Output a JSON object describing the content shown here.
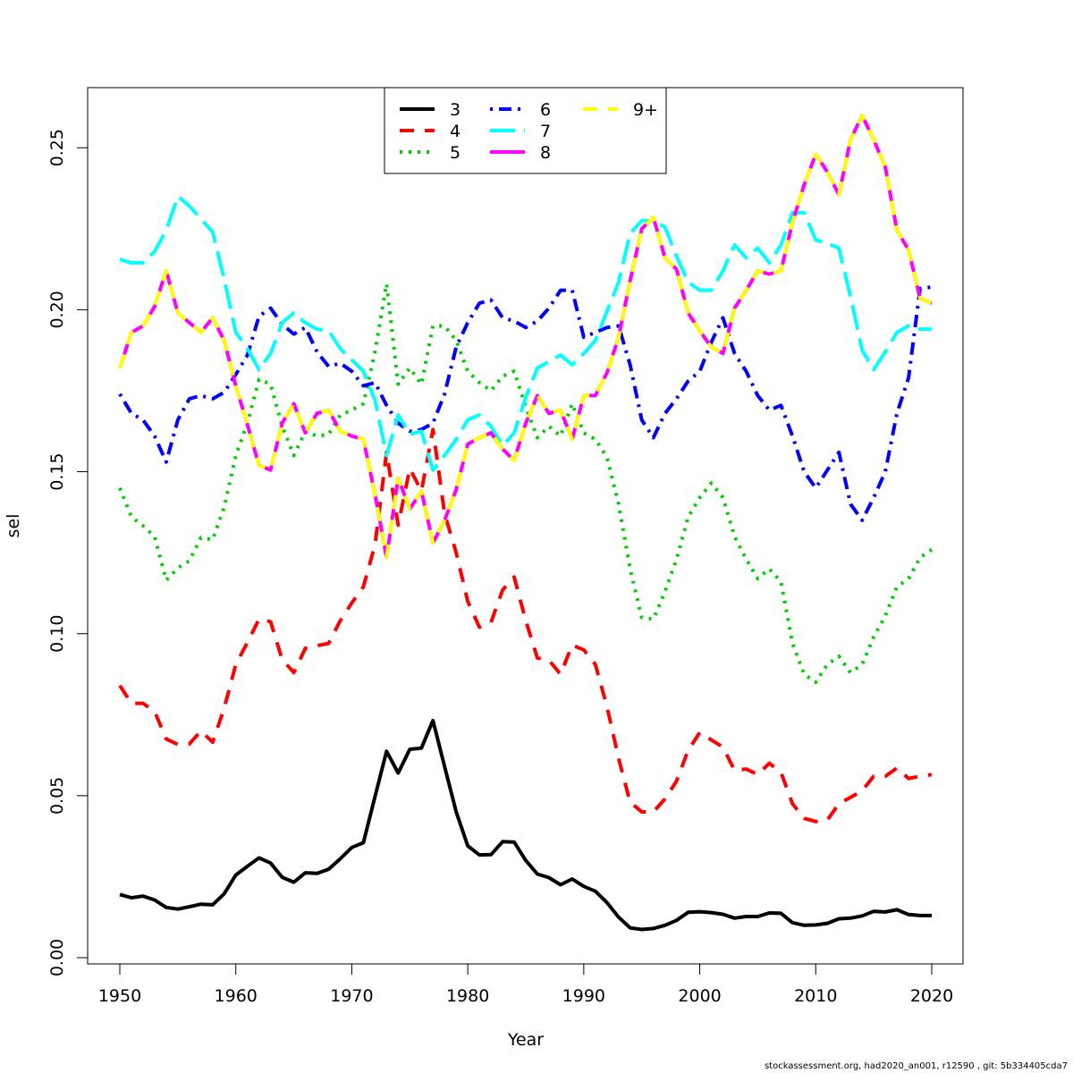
{
  "chart_data": {
    "type": "line",
    "xlabel": "Year",
    "ylabel": "sel",
    "xlim": [
      1950,
      2020
    ],
    "ylim": [
      0,
      0.26
    ],
    "x_ticks": [
      1950,
      1960,
      1970,
      1980,
      1990,
      2000,
      2010,
      2020
    ],
    "y_ticks": [
      0.0,
      0.05,
      0.1,
      0.15,
      0.2,
      0.25
    ],
    "y_tick_labels": [
      "0.00",
      "0.05",
      "0.10",
      "0.15",
      "0.20",
      "0.25"
    ],
    "legend_position": "top-center",
    "x": [
      1950,
      1951,
      1952,
      1953,
      1954,
      1955,
      1956,
      1957,
      1958,
      1959,
      1960,
      1961,
      1962,
      1963,
      1964,
      1965,
      1966,
      1967,
      1968,
      1969,
      1970,
      1971,
      1972,
      1973,
      1974,
      1975,
      1976,
      1977,
      1978,
      1979,
      1980,
      1981,
      1982,
      1983,
      1984,
      1985,
      1986,
      1987,
      1988,
      1989,
      1990,
      1991,
      1992,
      1993,
      1994,
      1995,
      1996,
      1997,
      1998,
      1999,
      2000,
      2001,
      2002,
      2003,
      2004,
      2005,
      2006,
      2007,
      2008,
      2009,
      2010,
      2011,
      2012,
      2013,
      2014,
      2015,
      2016,
      2017,
      2018,
      2019,
      2020
    ],
    "series": [
      {
        "name": "3",
        "color": "#000000",
        "dash": "solid",
        "values": [
          0.0195,
          0.0185,
          0.019,
          0.0178,
          0.0155,
          0.015,
          0.0157,
          0.0165,
          0.0163,
          0.0197,
          0.0255,
          0.0282,
          0.0308,
          0.0292,
          0.0248,
          0.0233,
          0.0262,
          0.026,
          0.0273,
          0.0305,
          0.034,
          0.0355,
          0.0497,
          0.0637,
          0.057,
          0.0643,
          0.0647,
          0.0732,
          0.059,
          0.045,
          0.0345,
          0.0317,
          0.0318,
          0.0358,
          0.0357,
          0.03,
          0.0258,
          0.0247,
          0.0225,
          0.0243,
          0.022,
          0.0205,
          0.017,
          0.0125,
          0.0092,
          0.0087,
          0.009,
          0.01,
          0.0115,
          0.014,
          0.0142,
          0.0139,
          0.0134,
          0.0122,
          0.0127,
          0.0127,
          0.0138,
          0.0137,
          0.0108,
          0.01,
          0.0101,
          0.0106,
          0.012,
          0.0122,
          0.0129,
          0.0143,
          0.0141,
          0.0148,
          0.0133,
          0.013,
          0.013
        ]
      },
      {
        "name": "4",
        "color": "#ff0000",
        "dash": "dashed",
        "values": [
          0.084,
          0.0785,
          0.0785,
          0.076,
          0.0675,
          0.0658,
          0.066,
          0.07,
          0.0665,
          0.077,
          0.0905,
          0.0973,
          0.1045,
          0.1037,
          0.092,
          0.088,
          0.0955,
          0.0963,
          0.097,
          0.104,
          0.1095,
          0.1145,
          0.1275,
          0.156,
          0.1335,
          0.151,
          0.144,
          0.163,
          0.137,
          0.125,
          0.11,
          0.102,
          0.1035,
          0.1135,
          0.1175,
          0.104,
          0.0925,
          0.0918,
          0.0875,
          0.0965,
          0.095,
          0.0905,
          0.0775,
          0.0615,
          0.048,
          0.045,
          0.045,
          0.049,
          0.0545,
          0.064,
          0.0695,
          0.0672,
          0.065,
          0.0578,
          0.0582,
          0.0565,
          0.06,
          0.0572,
          0.0475,
          0.043,
          0.042,
          0.0425,
          0.0475,
          0.0495,
          0.0515,
          0.056,
          0.056,
          0.0585,
          0.0553,
          0.056,
          0.0565
        ]
      },
      {
        "name": "5",
        "color": "#00cd00",
        "dash": "dotted",
        "values": [
          0.145,
          0.136,
          0.1333,
          0.13,
          0.1165,
          0.1203,
          0.1225,
          0.1297,
          0.129,
          0.139,
          0.155,
          0.165,
          0.1785,
          0.177,
          0.164,
          0.155,
          0.1625,
          0.161,
          0.1615,
          0.1675,
          0.169,
          0.171,
          0.187,
          0.208,
          0.177,
          0.182,
          0.177,
          0.195,
          0.195,
          0.1905,
          0.181,
          0.1775,
          0.175,
          0.1795,
          0.181,
          0.17,
          0.1605,
          0.164,
          0.161,
          0.171,
          0.162,
          0.16,
          0.1545,
          0.14,
          0.12,
          0.105,
          0.1045,
          0.113,
          0.123,
          0.136,
          0.142,
          0.1465,
          0.142,
          0.13,
          0.123,
          0.117,
          0.12,
          0.116,
          0.097,
          0.0875,
          0.085,
          0.0905,
          0.093,
          0.088,
          0.0905,
          0.099,
          0.1055,
          0.1145,
          0.117,
          0.1235,
          0.126
        ]
      },
      {
        "name": "6",
        "color": "#0000ff",
        "dash": "dotdash",
        "values": [
          0.174,
          0.168,
          0.166,
          0.161,
          0.153,
          0.166,
          0.1725,
          0.1735,
          0.1725,
          0.1745,
          0.18,
          0.186,
          0.198,
          0.2005,
          0.1955,
          0.1925,
          0.1945,
          0.187,
          0.1825,
          0.1835,
          0.181,
          0.1765,
          0.1775,
          0.1705,
          0.165,
          0.1625,
          0.163,
          0.165,
          0.174,
          0.1885,
          0.196,
          0.202,
          0.203,
          0.1975,
          0.1965,
          0.1945,
          0.1965,
          0.2005,
          0.206,
          0.206,
          0.1915,
          0.193,
          0.1945,
          0.195,
          0.183,
          0.166,
          0.1605,
          0.168,
          0.1725,
          0.178,
          0.181,
          0.19,
          0.1975,
          0.1865,
          0.181,
          0.1735,
          0.169,
          0.1705,
          0.161,
          0.15,
          0.145,
          0.1505,
          0.156,
          0.14,
          0.135,
          0.142,
          0.15,
          0.168,
          0.179,
          0.2065,
          0.207
        ]
      },
      {
        "name": "7",
        "color": "#00ffff",
        "dash": "longdash",
        "values": [
          0.2155,
          0.2145,
          0.2145,
          0.218,
          0.2245,
          0.235,
          0.232,
          0.228,
          0.224,
          0.2095,
          0.193,
          0.188,
          0.1815,
          0.1865,
          0.196,
          0.199,
          0.196,
          0.194,
          0.1935,
          0.188,
          0.1845,
          0.181,
          0.172,
          0.155,
          0.1675,
          0.1615,
          0.1625,
          0.1505,
          0.155,
          0.16,
          0.166,
          0.1675,
          0.164,
          0.158,
          0.162,
          0.173,
          0.182,
          0.184,
          0.186,
          0.183,
          0.1865,
          0.1905,
          0.1995,
          0.2085,
          0.2235,
          0.2275,
          0.2275,
          0.2255,
          0.2165,
          0.2085,
          0.206,
          0.206,
          0.212,
          0.22,
          0.216,
          0.219,
          0.2145,
          0.22,
          0.23,
          0.23,
          0.2215,
          0.2205,
          0.219,
          0.204,
          0.1875,
          0.1815,
          0.187,
          0.193,
          0.195,
          0.194,
          0.194
        ]
      },
      {
        "name": "8",
        "color": "#ff00ff",
        "dash": "solid",
        "values": [
          0.182,
          0.193,
          0.195,
          0.201,
          0.212,
          0.199,
          0.196,
          0.193,
          0.1975,
          0.1905,
          0.1765,
          0.1645,
          0.152,
          0.1505,
          0.165,
          0.171,
          0.162,
          0.168,
          0.169,
          0.1625,
          0.161,
          0.16,
          0.143,
          0.1235,
          0.148,
          0.1385,
          0.144,
          0.128,
          0.135,
          0.1445,
          0.1585,
          0.1605,
          0.162,
          0.157,
          0.1535,
          0.165,
          0.1735,
          0.168,
          0.169,
          0.16,
          0.1735,
          0.1735,
          0.1805,
          0.1915,
          0.209,
          0.225,
          0.2285,
          0.216,
          0.2125,
          0.199,
          0.1935,
          0.1885,
          0.1865,
          0.2005,
          0.206,
          0.212,
          0.211,
          0.212,
          0.227,
          0.2385,
          0.248,
          0.2425,
          0.2355,
          0.2525,
          0.26,
          0.2525,
          0.244,
          0.2245,
          0.2185,
          0.2035,
          0.202
        ]
      },
      {
        "name": "9+",
        "color": "#ffff00",
        "dash": "dashed",
        "values": [
          0.182,
          0.193,
          0.195,
          0.201,
          0.212,
          0.199,
          0.196,
          0.193,
          0.1975,
          0.1905,
          0.1765,
          0.1645,
          0.152,
          0.1505,
          0.165,
          0.171,
          0.162,
          0.168,
          0.169,
          0.1625,
          0.161,
          0.16,
          0.143,
          0.1235,
          0.148,
          0.1385,
          0.144,
          0.128,
          0.135,
          0.1445,
          0.1585,
          0.1605,
          0.162,
          0.157,
          0.1535,
          0.165,
          0.1735,
          0.168,
          0.169,
          0.16,
          0.1735,
          0.1735,
          0.1805,
          0.1915,
          0.209,
          0.225,
          0.2285,
          0.216,
          0.2125,
          0.199,
          0.1935,
          0.1885,
          0.1865,
          0.2005,
          0.206,
          0.212,
          0.211,
          0.212,
          0.227,
          0.2385,
          0.248,
          0.2425,
          0.2355,
          0.2525,
          0.26,
          0.2525,
          0.244,
          0.2245,
          0.2185,
          0.2035,
          0.202
        ]
      }
    ]
  },
  "footer_text": "stockassessment.org, had2020_an001, r12590 , git: 5b334405cda7"
}
